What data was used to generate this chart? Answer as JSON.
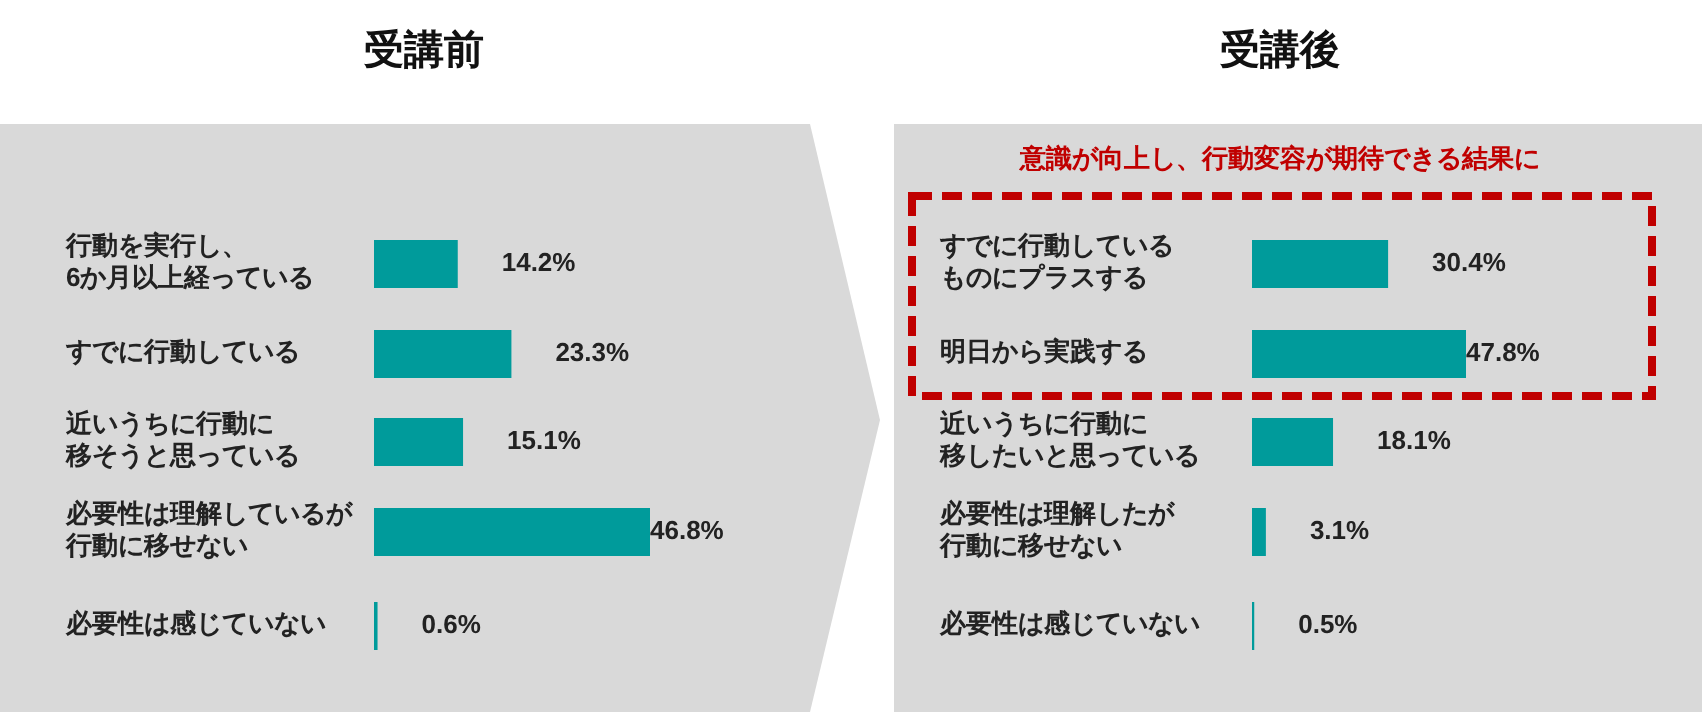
{
  "chart_data": [
    {
      "type": "bar",
      "orientation": "horizontal",
      "title": "受講前",
      "categories": [
        "行動を実行し、6か月以上経っている",
        "すでに行動している",
        "近いうちに行動に移そうと思っている",
        "必要性は理解しているが行動に移せない",
        "必要性は感じていない"
      ],
      "values": [
        14.2,
        23.3,
        15.1,
        46.8,
        0.6
      ],
      "value_labels": [
        "14.2%",
        "23.3%",
        "15.1%",
        "46.8%",
        "0.6%"
      ],
      "color": "#009b9b"
    },
    {
      "type": "bar",
      "orientation": "horizontal",
      "title": "受講後",
      "categories": [
        "すでに行動しているものにプラスする",
        "明日から実践する",
        "近いうちに行動に移したいと思っている",
        "必要性は理解したが行動に移せない",
        "必要性は感じていない"
      ],
      "values": [
        30.4,
        47.8,
        18.1,
        3.1,
        0.5
      ],
      "value_labels": [
        "30.4%",
        "47.8%",
        "18.1%",
        "3.1%",
        "0.5%"
      ],
      "color": "#009b9b",
      "annotations": [
        "意識が向上し、行動変容が期待できる結果に"
      ]
    }
  ]
}
